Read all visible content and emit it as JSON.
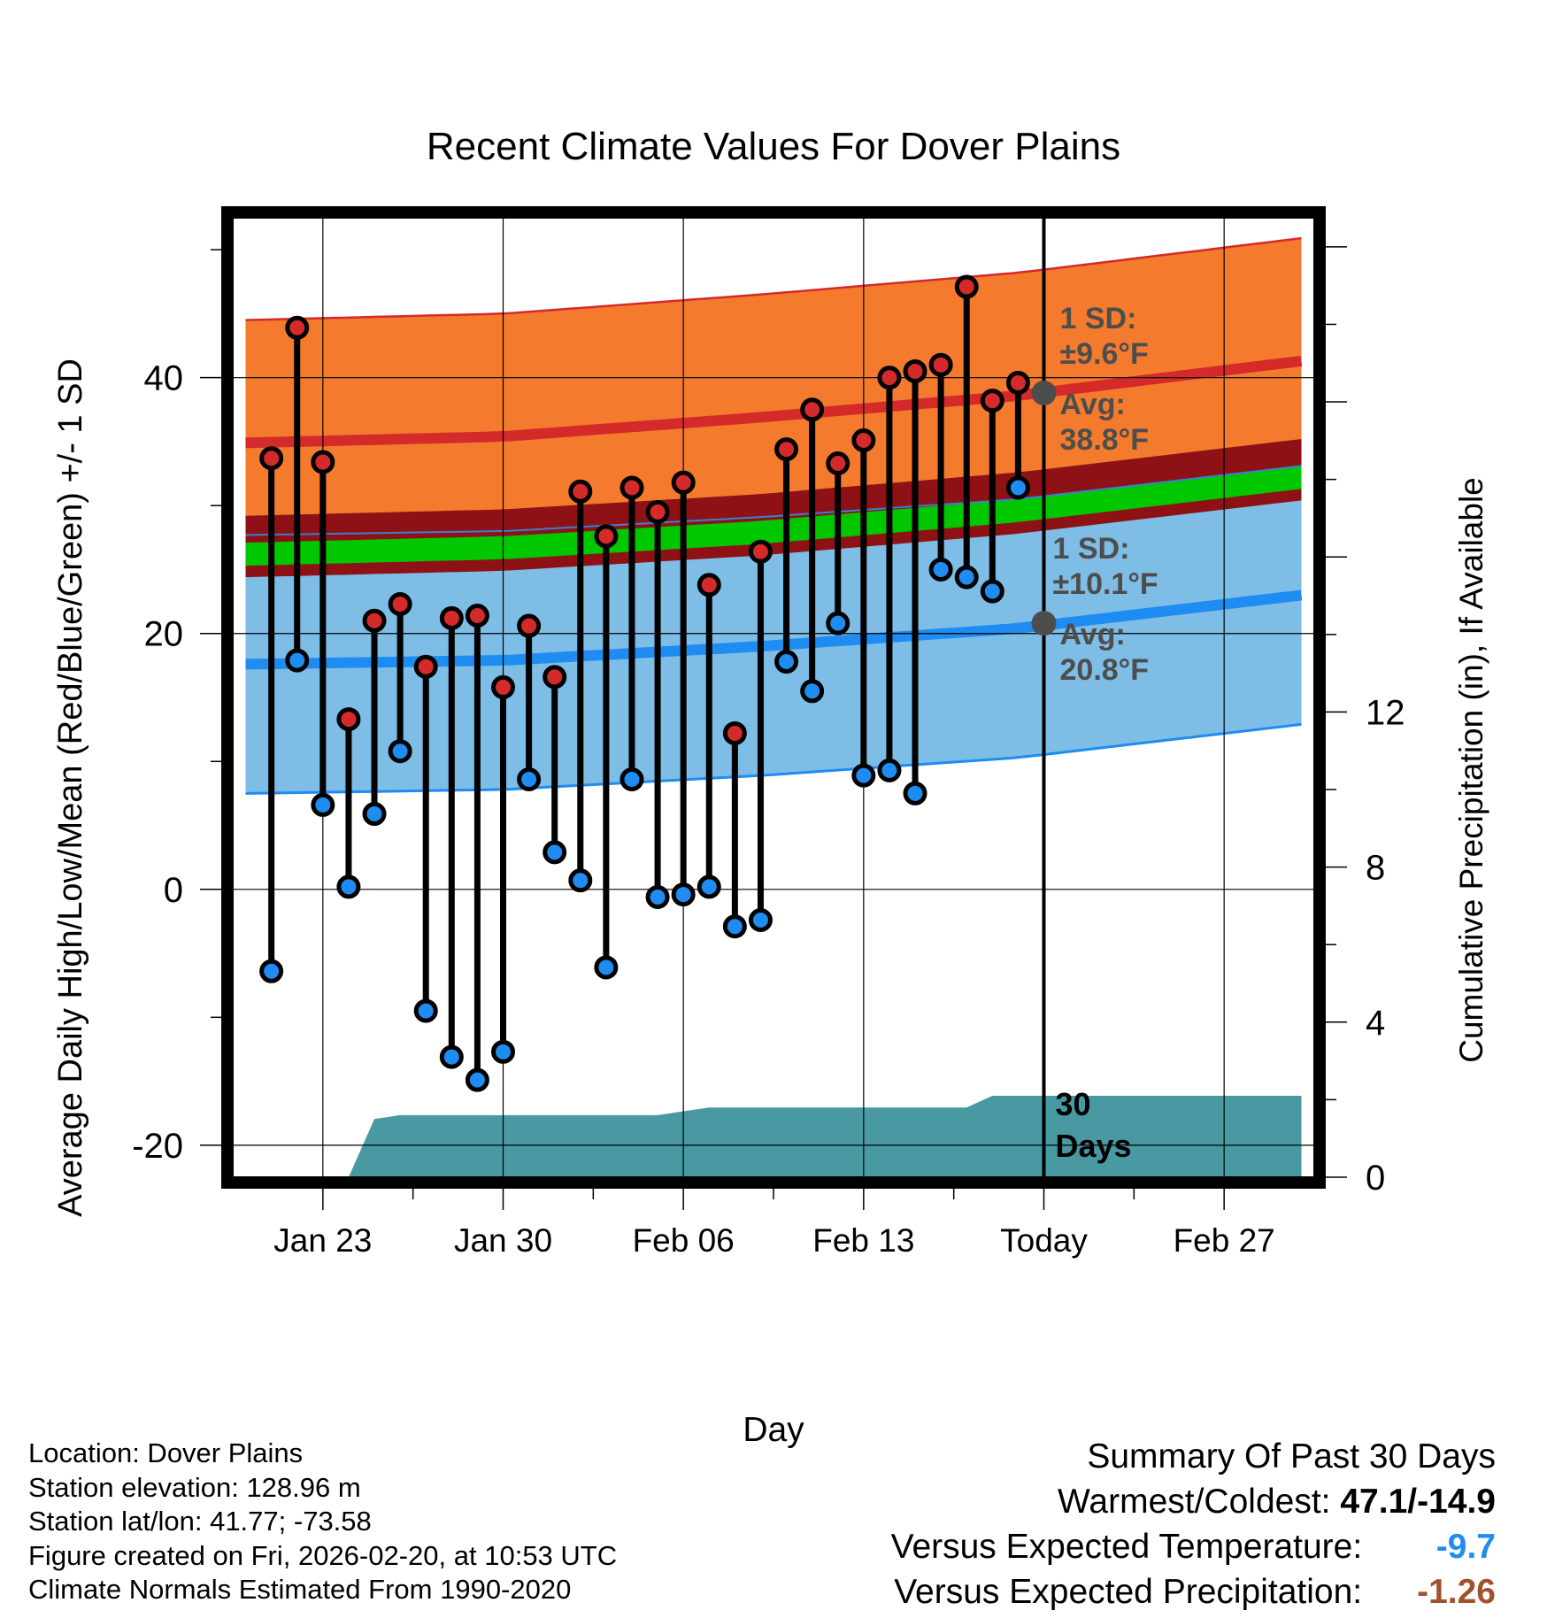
{
  "chart_data": {
    "type": "line",
    "title": "Recent Climate Values For Dover Plains",
    "xlabel": "Day",
    "ylabel": "Average Daily High/Low/Mean (Red/Blue/Green) +/- 1 SD",
    "y2label": "Cumulative Precipitation (in), If Available",
    "ylim": [
      -22.5,
      52.5
    ],
    "y_ticks": [
      -20,
      0,
      20,
      40
    ],
    "y2lim": [
      0,
      24.75
    ],
    "y2_ticks": [
      0,
      4,
      8,
      12
    ],
    "x_range_days": [
      -31.5,
      10.5
    ],
    "x_ticks": [
      {
        "day": -28,
        "label": "Jan 23"
      },
      {
        "day": -21,
        "label": "Jan 30"
      },
      {
        "day": -14,
        "label": "Feb 06"
      },
      {
        "day": -7,
        "label": "Feb 13"
      },
      {
        "day": 0,
        "label": "Today"
      },
      {
        "day": 7,
        "label": "Feb 27"
      }
    ],
    "grid": true,
    "series": [
      {
        "name": "Daily High",
        "color": "#d42a2a",
        "days": [
          -30,
          -29,
          -28,
          -27,
          -26,
          -25,
          -24,
          -23,
          -22,
          -21,
          -20,
          -19,
          -18,
          -17,
          -16,
          -15,
          -14,
          -13,
          -12,
          -11,
          -10,
          -9,
          -8,
          -7,
          -6,
          -5,
          -4,
          -3,
          -2,
          -1
        ],
        "values": [
          33.7,
          43.9,
          33.4,
          13.3,
          21.0,
          22.3,
          17.4,
          21.2,
          21.4,
          15.8,
          20.6,
          16.6,
          31.1,
          27.6,
          31.4,
          29.5,
          31.8,
          23.8,
          12.2,
          26.4,
          34.4,
          37.5,
          33.3,
          35.1,
          40.0,
          40.5,
          41.0,
          47.1,
          38.2,
          39.6
        ]
      },
      {
        "name": "Daily Low",
        "color": "#1e8cf0",
        "days": [
          -30,
          -29,
          -28,
          -27,
          -26,
          -25,
          -24,
          -23,
          -22,
          -21,
          -20,
          -19,
          -18,
          -17,
          -16,
          -15,
          -14,
          -13,
          -12,
          -11,
          -10,
          -9,
          -8,
          -7,
          -6,
          -5,
          -4,
          -3,
          -2,
          -1
        ],
        "values": [
          -6.4,
          17.9,
          6.6,
          0.2,
          5.9,
          10.8,
          -9.5,
          -13.1,
          -14.9,
          -12.7,
          8.6,
          2.9,
          0.7,
          -6.1,
          8.6,
          -0.6,
          -0.4,
          0.2,
          -2.9,
          -2.4,
          17.8,
          15.5,
          20.8,
          8.9,
          9.3,
          7.5,
          25.0,
          24.4,
          23.3,
          31.4
        ]
      }
    ],
    "normals": {
      "high_avg": {
        "days": [
          -31,
          -21,
          -11,
          -1,
          10
        ],
        "values": [
          34.9,
          35.4,
          36.9,
          38.6,
          41.3
        ]
      },
      "high_sd": 9.6,
      "low_avg": {
        "days": [
          -31,
          -21,
          -11,
          -1,
          10
        ],
        "values": [
          17.6,
          17.9,
          19.0,
          20.4,
          23.0
        ]
      },
      "low_sd": 10.1,
      "mean_avg": {
        "days": [
          -31,
          -21,
          -11,
          -1,
          10
        ],
        "values": [
          26.2,
          26.7,
          27.9,
          29.6,
          32.2
        ]
      }
    },
    "precip_cumulative": {
      "days": [
        -27,
        -26,
        -25,
        -21,
        -15,
        -14,
        -13,
        -3,
        -2,
        10
      ],
      "values": [
        0.0,
        1.5,
        1.6,
        1.6,
        1.6,
        1.7,
        1.8,
        1.8,
        2.1,
        2.1
      ]
    },
    "annotations": {
      "high": {
        "sd_label": "1 SD:",
        "sd_value": "±9.6°F",
        "avg_label": "Avg:",
        "avg_value": "38.8°F",
        "avg": 38.8
      },
      "low": {
        "sd_label": "1 SD:",
        "sd_value": "±10.1°F",
        "avg_label": "Avg:",
        "avg_value": "20.8°F",
        "avg": 20.8
      },
      "window_line1": "30",
      "window_line2": "Days"
    },
    "colors": {
      "high_band": "#f47b2e",
      "low_band": "#7ebde6",
      "mean_band_dark": "#8e1215",
      "mean_line": "#00c700",
      "precip": "#4899a2",
      "high_line": "#d42a2a",
      "low_line": "#1e8cf0",
      "annotation_text": "#4d4d4d"
    }
  },
  "footer": {
    "location": "Location: Dover Plains",
    "elevation": "Station elevation: 128.96 m",
    "latlon": "Station lat/lon: 41.77; -73.58",
    "created": "Figure created on Fri, 2026-02-20, at 10:53 UTC",
    "normals": "Climate Normals Estimated From 1990-2020"
  },
  "summary": {
    "title": "Summary Of Past 30 Days",
    "warmest_label": "Warmest/Coldest:",
    "warmest_value": "47.1/-14.9",
    "temp_label": "Versus Expected Temperature:",
    "temp_value": "-9.7",
    "temp_color": "#1e8cf0",
    "precip_label": "Versus Expected Precipitation:",
    "precip_value": "-1.26",
    "precip_color": "#a0522d"
  }
}
